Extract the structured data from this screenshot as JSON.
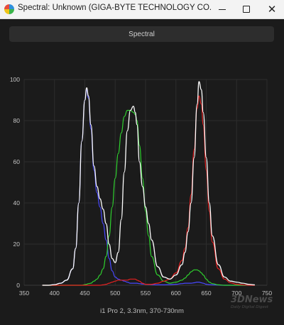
{
  "window": {
    "title": "Spectral: Unknown (GIGA-BYTE TECHNOLOGY CO., LTD. AORUS...",
    "buttons": {
      "minimize": "minimize-icon",
      "maximize": "maximize-icon",
      "close": "close-icon"
    }
  },
  "toolbar": {
    "spectral_label": "Spectral"
  },
  "watermark": {
    "logo": "3DNews",
    "tagline": "Daily Digital Digest"
  },
  "chart_data": {
    "type": "line",
    "xlabel": "i1 Pro 2, 3.3nm, 370-730nm",
    "ylabel": "",
    "xlim": [
      350,
      750
    ],
    "ylim": [
      0,
      100
    ],
    "x_ticks": [
      350,
      400,
      450,
      500,
      550,
      600,
      650,
      700,
      750
    ],
    "y_ticks": [
      0,
      20,
      40,
      60,
      80,
      100
    ],
    "grid": true,
    "legend": "none",
    "x": [
      380,
      390,
      400,
      410,
      420,
      430,
      435,
      440,
      445,
      450,
      453,
      456,
      460,
      465,
      470,
      475,
      480,
      485,
      490,
      495,
      500,
      505,
      510,
      515,
      520,
      525,
      530,
      533,
      536,
      540,
      545,
      550,
      555,
      560,
      570,
      580,
      590,
      600,
      610,
      615,
      620,
      625,
      630,
      635,
      638,
      642,
      645,
      650,
      655,
      660,
      670,
      680,
      690,
      700,
      710,
      720,
      730
    ],
    "series": [
      {
        "name": "",
        "color": "#ffffff",
        "values": [
          0,
          0,
          0.3,
          1,
          2.5,
          8,
          18,
          40,
          70,
          90,
          96,
          92,
          78,
          58,
          48,
          42,
          37,
          30,
          20,
          13,
          11,
          16,
          32,
          55,
          75,
          85,
          87,
          84,
          78,
          60,
          48,
          38,
          30,
          22,
          9,
          4,
          3,
          5,
          10,
          16,
          26,
          40,
          62,
          88,
          99,
          95,
          84,
          62,
          40,
          24,
          10,
          4,
          2,
          1.5,
          1,
          0.5,
          0.2
        ]
      },
      {
        "name": "",
        "color": "#4848ff",
        "values": [
          0,
          0,
          0.3,
          1,
          2.5,
          8,
          18,
          40,
          70,
          90,
          95,
          91,
          76,
          56,
          45,
          38,
          30,
          22,
          13,
          7,
          4,
          3,
          2.5,
          2,
          1.5,
          1,
          1,
          1,
          1,
          0.8,
          0.6,
          0.5,
          0.4,
          0.3,
          0.2,
          0.2,
          0.3,
          0.5,
          0.8,
          1,
          1,
          1,
          1.2,
          1.5,
          1.5,
          1.2,
          1,
          0.5,
          0.3,
          0.2,
          0.1,
          0,
          0,
          0,
          0,
          0,
          0
        ]
      },
      {
        "name": "",
        "color": "#2fd22f",
        "values": [
          0,
          0,
          0,
          0,
          0,
          0,
          0,
          0,
          0,
          0.3,
          0.5,
          0.8,
          1,
          2,
          3,
          5,
          8,
          14,
          24,
          38,
          52,
          64,
          74,
          82,
          85,
          85,
          84,
          83,
          80,
          68,
          52,
          36,
          24,
          14,
          5,
          2,
          1,
          1.5,
          2.5,
          3.5,
          5,
          6.5,
          7.5,
          7.5,
          7,
          6,
          5,
          3,
          1.5,
          0.8,
          0.2,
          0,
          0,
          0,
          0,
          0,
          0
        ]
      },
      {
        "name": "",
        "color": "#e82020",
        "values": [
          0,
          0,
          0,
          0,
          0,
          0,
          0,
          0,
          0,
          0,
          0,
          0,
          0,
          0,
          0,
          0,
          0.2,
          0.5,
          1,
          1.5,
          2,
          2.5,
          2.5,
          2.5,
          2.5,
          3,
          3,
          3,
          2.5,
          2,
          1,
          0.5,
          0.5,
          0.5,
          1,
          2,
          3,
          6,
          12,
          18,
          28,
          44,
          66,
          86,
          92,
          88,
          78,
          56,
          36,
          21,
          8,
          3,
          1.2,
          0.5,
          0.2,
          0,
          0
        ]
      }
    ]
  }
}
